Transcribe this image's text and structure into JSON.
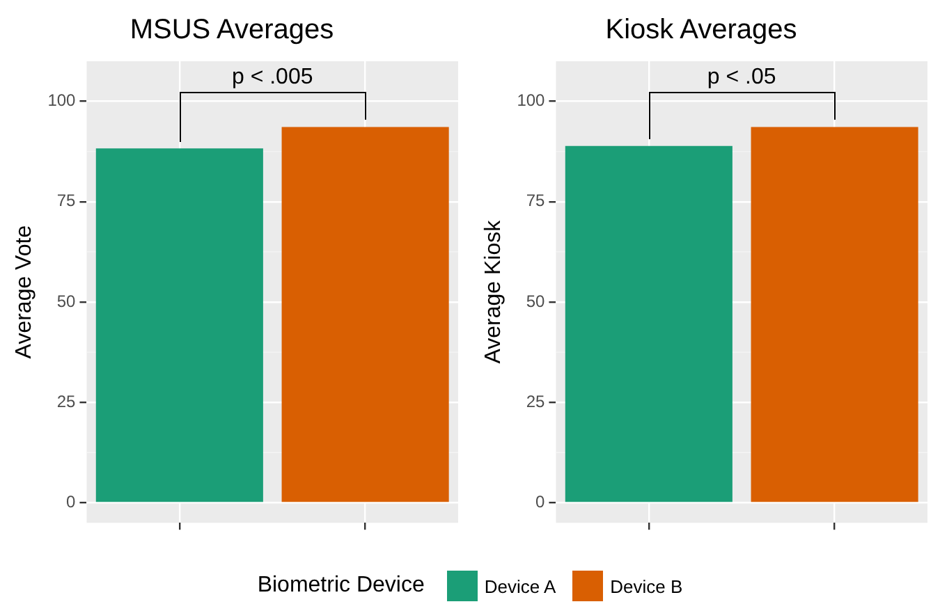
{
  "chart_data": [
    {
      "type": "bar",
      "title": "MSUS Averages",
      "ylabel": "Average Vote",
      "categories": [
        null,
        null
      ],
      "series": [
        {
          "name": "Device A",
          "color": "#1b9e77",
          "values": [
            88.3,
            null
          ]
        },
        {
          "name": "Device B",
          "color": "#d95f02",
          "values": [
            null,
            93.6
          ]
        }
      ],
      "ylim": [
        -5,
        110
      ],
      "yticks": [
        0,
        25,
        50,
        75,
        100
      ],
      "grid": true,
      "legend": "bottom",
      "legend_title": "Biometric Device",
      "annotations": [
        "p < .005"
      ]
    },
    {
      "type": "bar",
      "title": "Kiosk Averages",
      "ylabel": "Average Kiosk",
      "categories": [
        null,
        null
      ],
      "series": [
        {
          "color": "#1b9e77",
          "values": [
            88.9,
            null
          ]
        },
        {
          "color": "#d95f02",
          "values": [
            null,
            93.6
          ]
        }
      ],
      "ylim": [
        -5,
        110
      ],
      "yticks": [
        0,
        25,
        50,
        75,
        100
      ],
      "grid": true,
      "annotations": [
        "p < .05"
      ]
    }
  ]
}
